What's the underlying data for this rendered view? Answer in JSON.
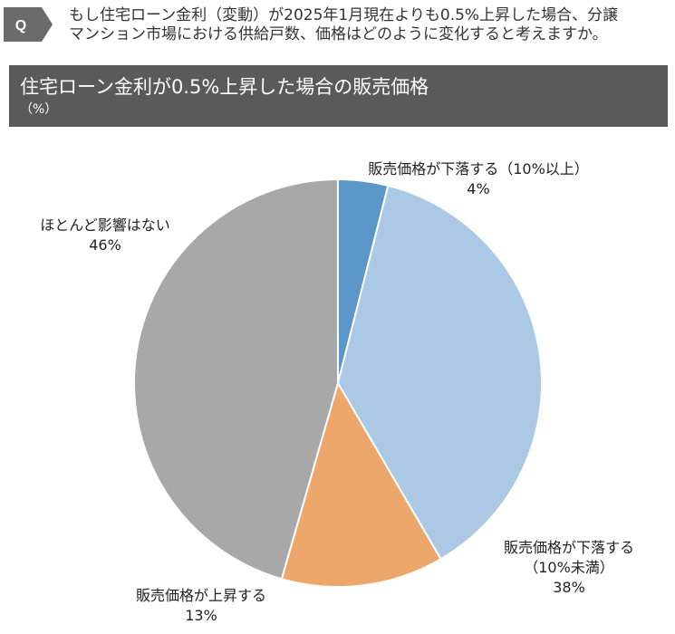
{
  "question": {
    "badge": "Q",
    "lines": [
      "もし住宅ローン金利（変動）が2025年1月現在よりも0.5%上昇した場合、分譲",
      "マンション市場における供給戸数、価格はどのように変化すると考えますか。"
    ]
  },
  "header": {
    "title": "住宅ローン金利が0.5%上昇した場合の販売価格",
    "unit": "（%）"
  },
  "chart_data": {
    "type": "pie",
    "title": "住宅ローン金利が0.5%上昇した場合の販売価格",
    "unit": "（%）",
    "start": "12 o'clock, clockwise",
    "slices": [
      {
        "label": "販売価格が下落する（10%以上）",
        "label_lines": [
          "販売価格が下落する（10%以上）"
        ],
        "value": 4,
        "value_label": "4%",
        "color": "#5b96c8"
      },
      {
        "label": "販売価格が下落する（10%未満）",
        "label_lines": [
          "販売価格が下落する",
          "（10%未満）"
        ],
        "value": 38,
        "value_label": "38%",
        "color": "#abc9e4"
      },
      {
        "label": "販売価格が上昇する",
        "label_lines": [
          "販売価格が上昇する"
        ],
        "value": 13,
        "value_label": "13%",
        "color": "#eea76a"
      },
      {
        "label": "ほとんど影響はない",
        "label_lines": [
          "ほとんど影響はない"
        ],
        "value": 46,
        "value_label": "46%",
        "color": "#a8a8a8"
      }
    ]
  }
}
